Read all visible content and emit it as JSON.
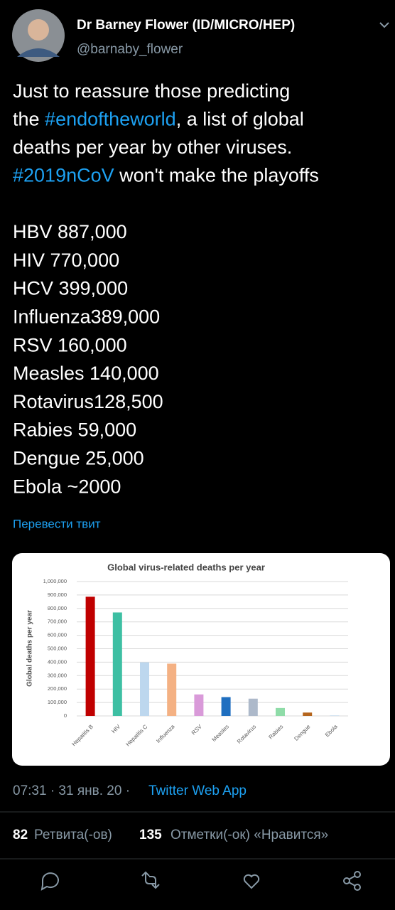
{
  "tweet": {
    "author_name": "Dr Barney Flower (ID/MICRO/HEP)",
    "handle": "@barnaby_flower",
    "text_lines": [
      [
        {
          "text": "Just to reassure those predicting"
        }
      ],
      [
        {
          "text": "the "
        },
        {
          "text": "#endoftheworld",
          "link": true
        },
        {
          "text": ", a list of global"
        }
      ],
      [
        {
          "text": "deaths per year by other viruses."
        }
      ],
      [
        {
          "text": "#2019nCoV",
          "link": true
        },
        {
          "text": " won't make the playoffs"
        }
      ]
    ],
    "list_lines": [
      "HBV 887,000",
      "HIV 770,000",
      "HCV 399,000",
      "Influenza389,000",
      "RSV 160,000",
      "Measles 140,000",
      "Rotavirus128,500",
      "Rabies 59,000",
      "Dengue 25,000",
      "Ebola ~2000"
    ],
    "translate": "Перевести твит",
    "timestamp": "07:31 · 31 янв. 20 ·",
    "source": "Twitter Web App",
    "retweets": "82",
    "retweets_label": "Ретвита(-ов)",
    "likes": "135",
    "likes_label": "Отметки(-ок) «Нравится»"
  },
  "chart_data": {
    "type": "bar",
    "title": "Global virus-related deaths per year",
    "y_label": "Global deaths per year",
    "categories": [
      "Hepatitis B",
      "HIV",
      "Hepatitis C",
      "Influenza",
      "RSV",
      "Measles",
      "Rotavirus",
      "Rabies",
      "Dengue",
      "Ebola"
    ],
    "values": [
      887000,
      770000,
      399000,
      389000,
      160000,
      140000,
      128500,
      59000,
      25000,
      2000
    ],
    "colors": [
      "#c00000",
      "#3dbfa3",
      "#bdd7ee",
      "#f4b183",
      "#d99ad9",
      "#1f6fc0",
      "#adb9ca",
      "#8fdca8",
      "#b5651d",
      "#9dc3e6"
    ],
    "ylim": [
      0,
      1000000
    ],
    "yticks": [
      0,
      {
        "value": 100000,
        "label": "100,000"
      },
      {
        "value": 200000,
        "label": "200,000"
      },
      {
        "value": 300000,
        "label": "300,000"
      },
      {
        "value": 400000,
        "label": "400,000"
      },
      {
        "value": 500000,
        "label": "500,000"
      },
      {
        "value": 600000,
        "label": "600,000"
      },
      {
        "value": 700000,
        "label": "700,000"
      },
      {
        "value": 800000,
        "label": "800,000"
      },
      {
        "value": 900000,
        "label": "900,000"
      },
      {
        "value": 1000000,
        "label": "1,000,000"
      }
    ],
    "grid": true
  }
}
